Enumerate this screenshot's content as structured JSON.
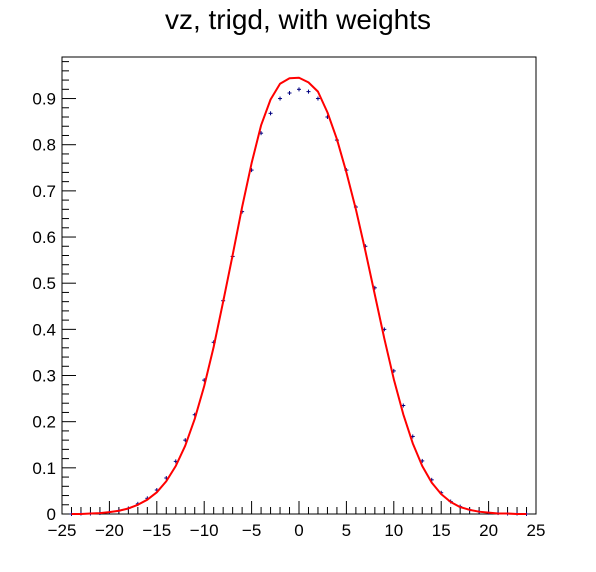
{
  "chart_data": {
    "type": "line",
    "title": "vz, trigd, with weights",
    "xlabel": "",
    "ylabel": "",
    "xlim": [
      -25,
      25
    ],
    "ylim": [
      0,
      0.99
    ],
    "x_ticks": [
      -25,
      -20,
      -15,
      -10,
      -5,
      0,
      5,
      10,
      15,
      20,
      25
    ],
    "x_tick_labels": [
      "−25",
      "−20",
      "−15",
      "−10",
      "−5",
      "0",
      "5",
      "10",
      "15",
      "20",
      "25"
    ],
    "y_ticks": [
      0,
      0.1,
      0.2,
      0.3,
      0.4,
      0.5,
      0.6,
      0.7,
      0.8,
      0.9
    ],
    "y_tick_labels": [
      "0",
      "0.1",
      "0.2",
      "0.3",
      "0.4",
      "0.5",
      "0.6",
      "0.7",
      "0.8",
      "0.9"
    ],
    "grid": false,
    "legend": "none",
    "colors": {
      "data_points": "#000080",
      "fit_curve": "#ff0000",
      "axis": "#000000"
    },
    "series": [
      {
        "kind": "histogram points with error bars",
        "x": [
          -24,
          -23,
          -22,
          -21,
          -20,
          -19,
          -18,
          -17,
          -16,
          -15,
          -14,
          -13,
          -12,
          -11,
          -10,
          -9,
          -8,
          -7,
          -6,
          -5,
          -4,
          -3,
          -2,
          -1,
          0,
          1,
          2,
          3,
          4,
          5,
          6,
          7,
          8,
          9,
          10,
          11,
          12,
          13,
          14,
          15,
          16,
          17,
          18,
          19,
          20,
          21,
          22,
          23,
          24
        ],
        "y": [
          0.0,
          0.001,
          0.001,
          0.002,
          0.004,
          0.007,
          0.012,
          0.022,
          0.034,
          0.052,
          0.078,
          0.114,
          0.16,
          0.215,
          0.29,
          0.372,
          0.462,
          0.558,
          0.655,
          0.745,
          0.825,
          0.868,
          0.9,
          0.912,
          0.92,
          0.915,
          0.9,
          0.86,
          0.81,
          0.745,
          0.665,
          0.58,
          0.49,
          0.4,
          0.31,
          0.235,
          0.168,
          0.115,
          0.074,
          0.046,
          0.027,
          0.016,
          0.009,
          0.005,
          0.003,
          0.002,
          0.001,
          0.001,
          0.0
        ]
      },
      {
        "kind": "fit curve",
        "x": [
          -24,
          -23,
          -22,
          -21,
          -20,
          -19,
          -18,
          -17,
          -16,
          -15,
          -14,
          -13,
          -12,
          -11,
          -10,
          -9,
          -8,
          -7,
          -6,
          -5,
          -4,
          -3,
          -2,
          -1,
          0,
          1,
          2,
          3,
          4,
          5,
          6,
          7,
          8,
          9,
          10,
          11,
          12,
          13,
          14,
          15,
          16,
          17,
          18,
          19,
          20,
          21,
          22,
          23,
          24
        ],
        "y": [
          0.0,
          0.0,
          0.001,
          0.002,
          0.004,
          0.007,
          0.012,
          0.02,
          0.031,
          0.047,
          0.071,
          0.104,
          0.148,
          0.206,
          0.277,
          0.362,
          0.46,
          0.561,
          0.665,
          0.76,
          0.842,
          0.898,
          0.932,
          0.944,
          0.945,
          0.935,
          0.915,
          0.87,
          0.812,
          0.74,
          0.66,
          0.57,
          0.475,
          0.38,
          0.292,
          0.216,
          0.153,
          0.104,
          0.068,
          0.043,
          0.026,
          0.015,
          0.009,
          0.005,
          0.003,
          0.001,
          0.001,
          0.0,
          0.0
        ]
      }
    ]
  }
}
